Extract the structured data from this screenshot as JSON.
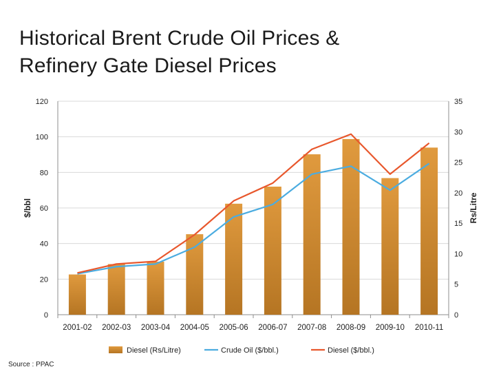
{
  "title_lines": [
    "Historical Brent Crude Oil Prices &",
    "Refinery Gate Diesel Prices"
  ],
  "source": "Source : PPAC",
  "colors": {
    "bar": "#E09A3E",
    "bar_dark": "#B57523",
    "crude_line": "#4BACE0",
    "diesel_line": "#E8572C",
    "grid": "#d9d9d9"
  },
  "chart_data": {
    "type": "bar",
    "categories": [
      "2001-02",
      "2002-03",
      "2003-04",
      "2004-05",
      "2005-06",
      "2006-07",
      "2007-08",
      "2008-09",
      "2009-10",
      "2010-11"
    ],
    "ylabel": "$/bbl",
    "y2label": "Rs/Litre",
    "ylim": [
      0,
      120
    ],
    "y2lim": [
      0,
      35
    ],
    "yticks": [
      0,
      20,
      40,
      60,
      80,
      100,
      120
    ],
    "y2ticks": [
      0,
      5,
      10,
      15,
      20,
      25,
      30,
      35
    ],
    "grid": true,
    "legend_position": "bottom",
    "series": [
      {
        "name": "Diesel (Rs/Litre)",
        "type": "bar",
        "axis": "right",
        "values": [
          6.6,
          8.3,
          8.7,
          13.2,
          18.2,
          21.0,
          26.3,
          28.8,
          22.4,
          27.4
        ]
      },
      {
        "name": "Crude Oil  ($/bbl.)",
        "type": "line",
        "axis": "left",
        "values": [
          23,
          27,
          28.5,
          38,
          55,
          62,
          79,
          83.5,
          70,
          85
        ]
      },
      {
        "name": "Diesel  ($/bbl.)",
        "type": "line",
        "axis": "left",
        "values": [
          23.5,
          28.5,
          30,
          45,
          64,
          74,
          93,
          101.5,
          79,
          96.5
        ]
      }
    ]
  }
}
